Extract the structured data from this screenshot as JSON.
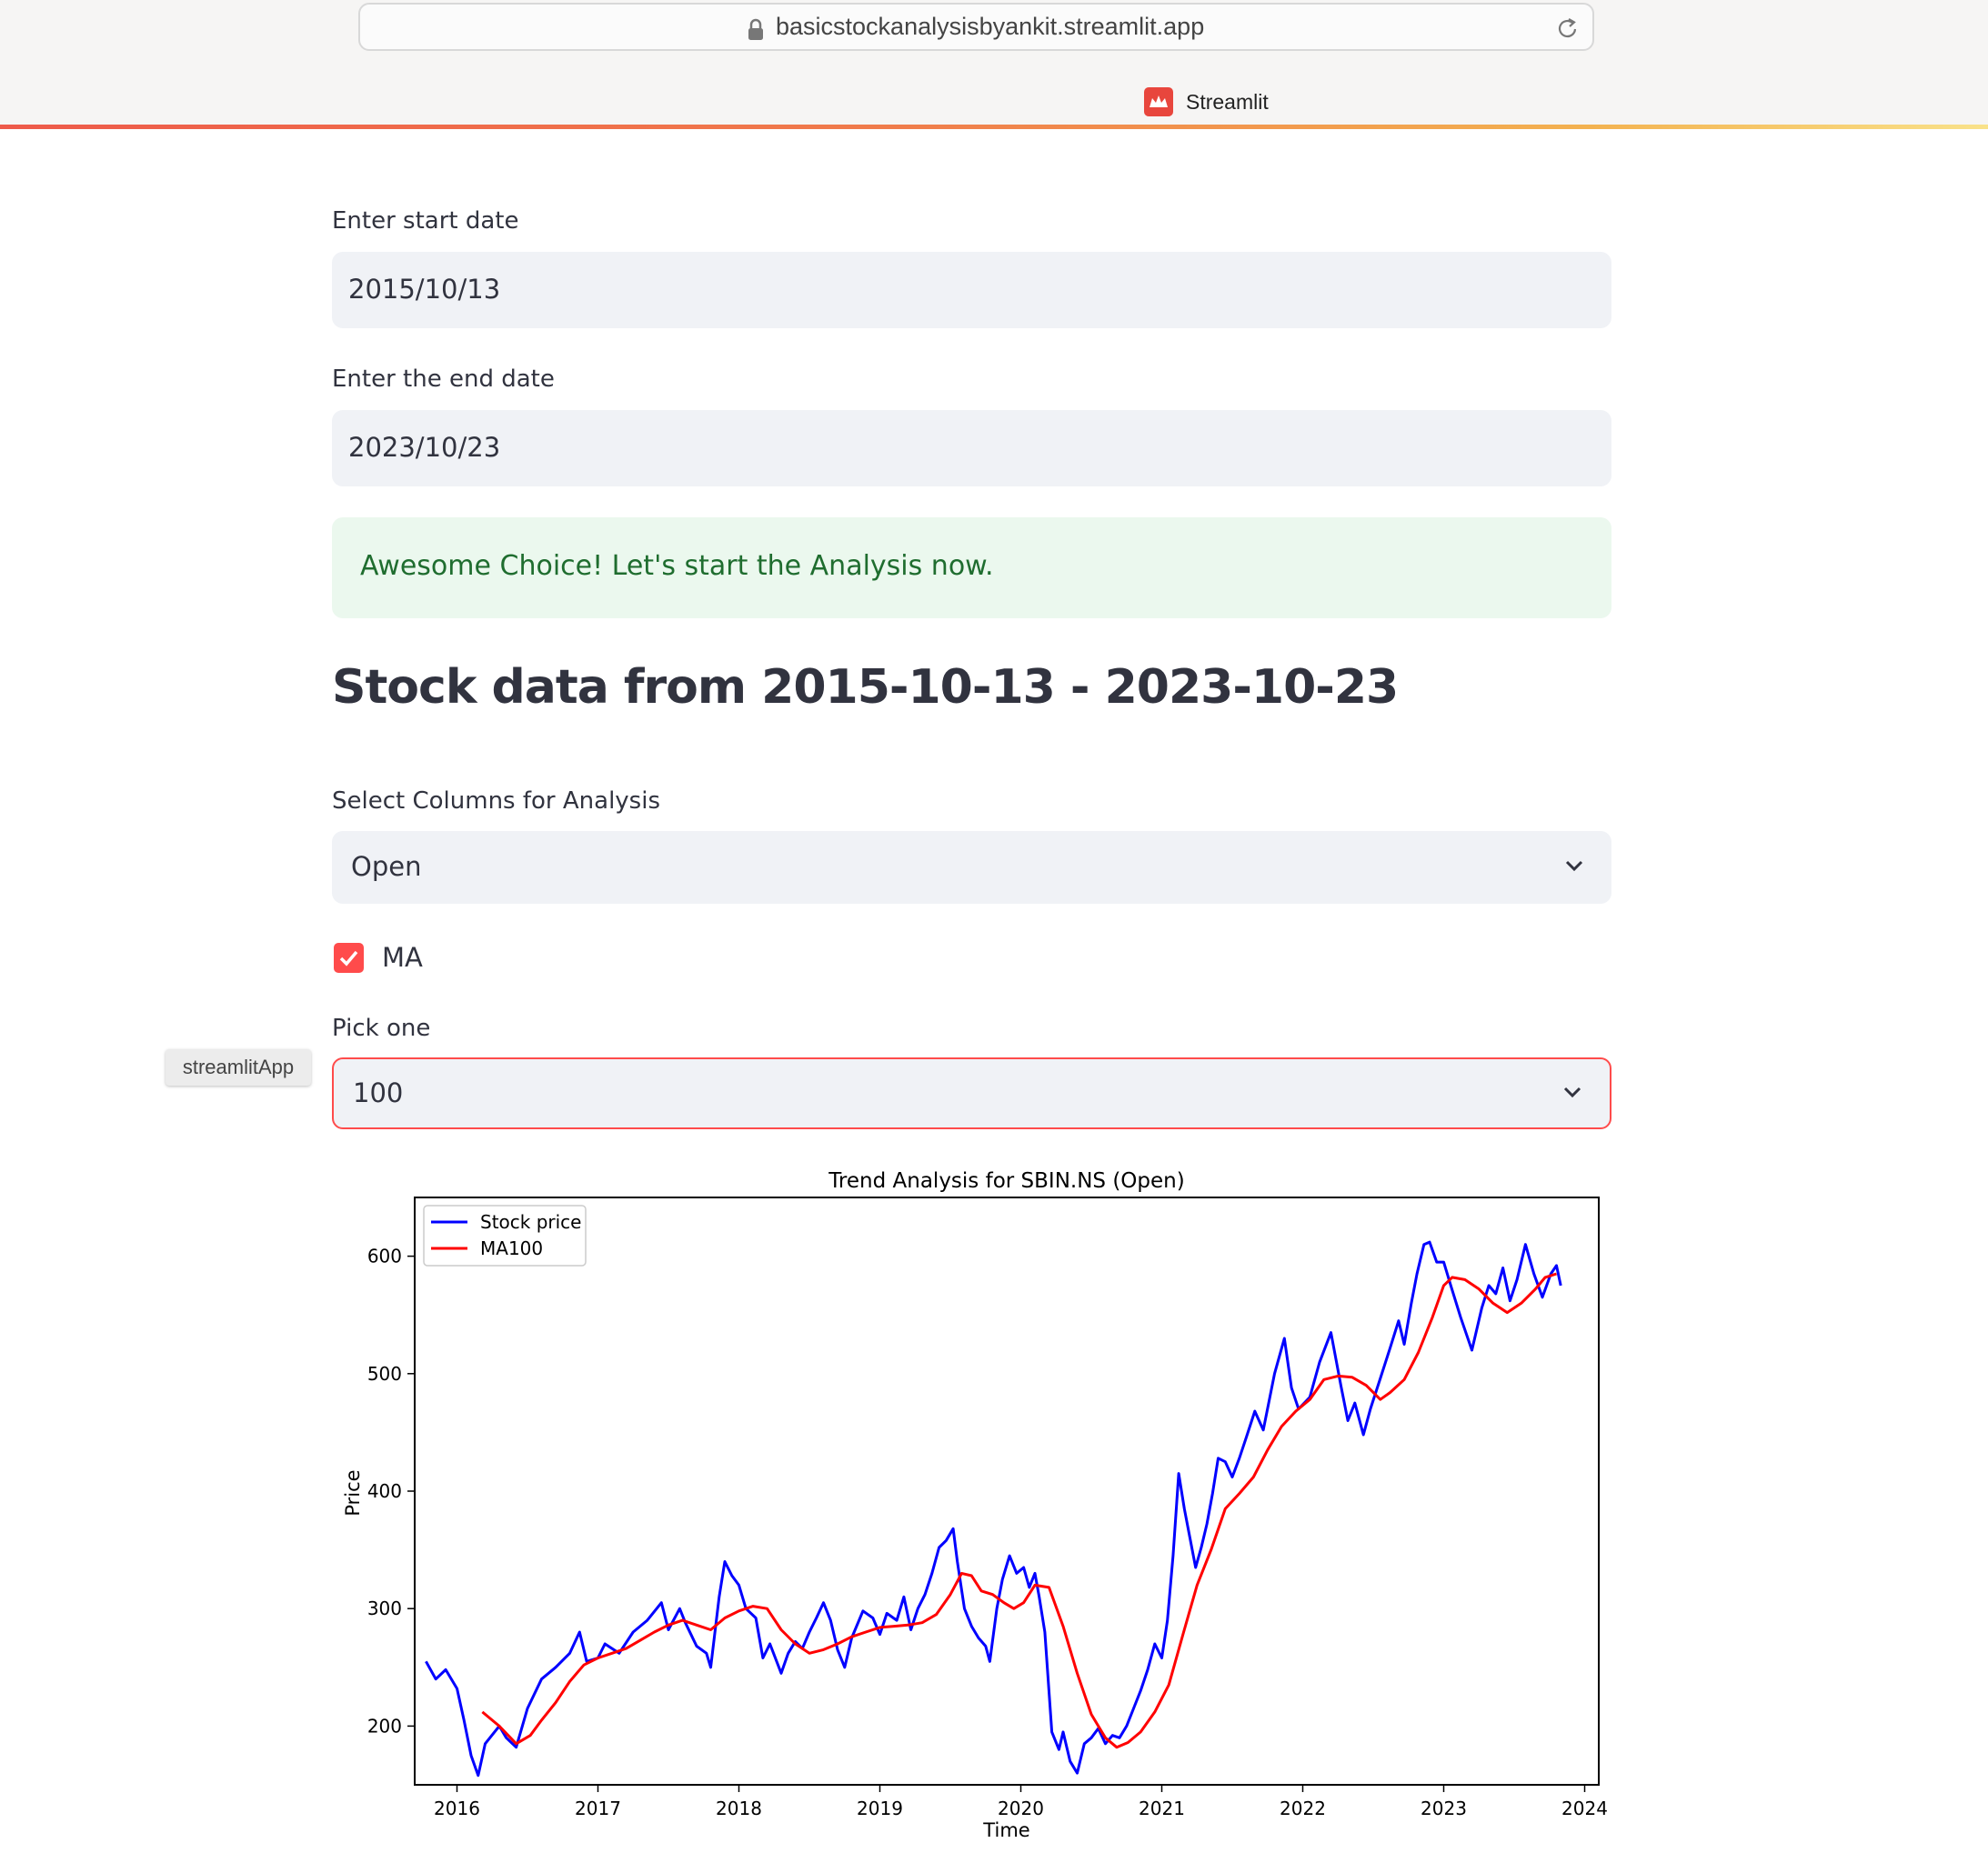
{
  "browser": {
    "url": "basicstockanalysisbyankit.streamlit.app",
    "tab_title": "Streamlit"
  },
  "form": {
    "start_label": "Enter start date",
    "start_value": "2015/10/13",
    "end_label": "Enter the end date",
    "end_value": "2023/10/23"
  },
  "success_message": "Awesome Choice! Let's start the Analysis now.",
  "heading": "Stock data from 2015-10-13 - 2023-10-23",
  "columns_select": {
    "label": "Select Columns for Analysis",
    "value": "Open"
  },
  "ma_checkbox": {
    "label": "MA",
    "checked": true
  },
  "pick_select": {
    "label": "Pick one",
    "value": "100"
  },
  "tooltip": "streamlitApp",
  "colors": {
    "primary": "#ff4b4b",
    "success_bg": "#ebf8ee",
    "success_text": "#1f6d2f",
    "input_bg": "#f0f2f6"
  },
  "chart_data": {
    "type": "line",
    "title": "Trend Analysis for SBIN.NS (Open)",
    "xlabel": "Time",
    "ylabel": "Price",
    "xlim": [
      2015.7,
      2024.1
    ],
    "ylim": [
      150,
      650
    ],
    "x_ticks": [
      "2016",
      "2017",
      "2018",
      "2019",
      "2020",
      "2021",
      "2022",
      "2023",
      "2024"
    ],
    "y_ticks": [
      200,
      300,
      400,
      500,
      600
    ],
    "legend_position": "top-left",
    "grid": false,
    "series": [
      {
        "name": "Stock price",
        "color": "#0000ff",
        "points": [
          [
            2015.78,
            255
          ],
          [
            2015.85,
            240
          ],
          [
            2015.92,
            248
          ],
          [
            2016.0,
            232
          ],
          [
            2016.05,
            205
          ],
          [
            2016.1,
            175
          ],
          [
            2016.15,
            158
          ],
          [
            2016.2,
            185
          ],
          [
            2016.3,
            200
          ],
          [
            2016.35,
            190
          ],
          [
            2016.42,
            182
          ],
          [
            2016.5,
            215
          ],
          [
            2016.6,
            240
          ],
          [
            2016.7,
            250
          ],
          [
            2016.8,
            262
          ],
          [
            2016.87,
            280
          ],
          [
            2016.92,
            255
          ],
          [
            2017.0,
            258
          ],
          [
            2017.05,
            270
          ],
          [
            2017.15,
            262
          ],
          [
            2017.25,
            280
          ],
          [
            2017.35,
            290
          ],
          [
            2017.45,
            305
          ],
          [
            2017.5,
            282
          ],
          [
            2017.58,
            300
          ],
          [
            2017.62,
            288
          ],
          [
            2017.7,
            268
          ],
          [
            2017.77,
            262
          ],
          [
            2017.8,
            250
          ],
          [
            2017.86,
            310
          ],
          [
            2017.9,
            340
          ],
          [
            2017.95,
            328
          ],
          [
            2018.0,
            320
          ],
          [
            2018.05,
            300
          ],
          [
            2018.12,
            292
          ],
          [
            2018.17,
            258
          ],
          [
            2018.22,
            270
          ],
          [
            2018.3,
            245
          ],
          [
            2018.35,
            262
          ],
          [
            2018.4,
            272
          ],
          [
            2018.45,
            266
          ],
          [
            2018.5,
            280
          ],
          [
            2018.55,
            292
          ],
          [
            2018.6,
            305
          ],
          [
            2018.65,
            290
          ],
          [
            2018.7,
            265
          ],
          [
            2018.75,
            250
          ],
          [
            2018.8,
            275
          ],
          [
            2018.88,
            298
          ],
          [
            2018.95,
            292
          ],
          [
            2019.0,
            278
          ],
          [
            2019.05,
            296
          ],
          [
            2019.12,
            290
          ],
          [
            2019.17,
            310
          ],
          [
            2019.22,
            282
          ],
          [
            2019.27,
            300
          ],
          [
            2019.32,
            312
          ],
          [
            2019.37,
            330
          ],
          [
            2019.42,
            352
          ],
          [
            2019.47,
            358
          ],
          [
            2019.52,
            368
          ],
          [
            2019.55,
            340
          ],
          [
            2019.6,
            300
          ],
          [
            2019.65,
            285
          ],
          [
            2019.7,
            275
          ],
          [
            2019.75,
            268
          ],
          [
            2019.78,
            255
          ],
          [
            2019.83,
            300
          ],
          [
            2019.87,
            325
          ],
          [
            2019.92,
            345
          ],
          [
            2019.97,
            330
          ],
          [
            2020.02,
            335
          ],
          [
            2020.06,
            318
          ],
          [
            2020.1,
            330
          ],
          [
            2020.13,
            310
          ],
          [
            2020.17,
            280
          ],
          [
            2020.22,
            195
          ],
          [
            2020.27,
            180
          ],
          [
            2020.3,
            195
          ],
          [
            2020.35,
            170
          ],
          [
            2020.4,
            160
          ],
          [
            2020.45,
            185
          ],
          [
            2020.5,
            190
          ],
          [
            2020.55,
            198
          ],
          [
            2020.6,
            185
          ],
          [
            2020.65,
            192
          ],
          [
            2020.7,
            190
          ],
          [
            2020.75,
            200
          ],
          [
            2020.8,
            215
          ],
          [
            2020.85,
            230
          ],
          [
            2020.9,
            248
          ],
          [
            2020.95,
            270
          ],
          [
            2021.0,
            258
          ],
          [
            2021.04,
            290
          ],
          [
            2021.08,
            345
          ],
          [
            2021.12,
            415
          ],
          [
            2021.16,
            385
          ],
          [
            2021.2,
            360
          ],
          [
            2021.24,
            335
          ],
          [
            2021.28,
            352
          ],
          [
            2021.32,
            372
          ],
          [
            2021.36,
            398
          ],
          [
            2021.4,
            428
          ],
          [
            2021.45,
            425
          ],
          [
            2021.5,
            412
          ],
          [
            2021.55,
            428
          ],
          [
            2021.6,
            446
          ],
          [
            2021.66,
            468
          ],
          [
            2021.72,
            452
          ],
          [
            2021.8,
            500
          ],
          [
            2021.87,
            530
          ],
          [
            2021.92,
            488
          ],
          [
            2021.97,
            470
          ],
          [
            2022.05,
            480
          ],
          [
            2022.12,
            510
          ],
          [
            2022.2,
            535
          ],
          [
            2022.27,
            490
          ],
          [
            2022.32,
            460
          ],
          [
            2022.37,
            475
          ],
          [
            2022.43,
            448
          ],
          [
            2022.48,
            470
          ],
          [
            2022.55,
            496
          ],
          [
            2022.62,
            522
          ],
          [
            2022.68,
            545
          ],
          [
            2022.72,
            525
          ],
          [
            2022.77,
            560
          ],
          [
            2022.81,
            585
          ],
          [
            2022.86,
            610
          ],
          [
            2022.9,
            612
          ],
          [
            2022.95,
            595
          ],
          [
            2023.0,
            595
          ],
          [
            2023.05,
            575
          ],
          [
            2023.12,
            548
          ],
          [
            2023.2,
            520
          ],
          [
            2023.27,
            556
          ],
          [
            2023.32,
            575
          ],
          [
            2023.37,
            568
          ],
          [
            2023.42,
            590
          ],
          [
            2023.47,
            562
          ],
          [
            2023.52,
            580
          ],
          [
            2023.58,
            610
          ],
          [
            2023.64,
            585
          ],
          [
            2023.7,
            565
          ],
          [
            2023.76,
            585
          ],
          [
            2023.8,
            592
          ],
          [
            2023.83,
            575
          ]
        ]
      },
      {
        "name": "MA100",
        "color": "#ff0000",
        "points": [
          [
            2016.18,
            212
          ],
          [
            2016.3,
            200
          ],
          [
            2016.42,
            185
          ],
          [
            2016.52,
            192
          ],
          [
            2016.6,
            205
          ],
          [
            2016.7,
            220
          ],
          [
            2016.8,
            238
          ],
          [
            2016.9,
            252
          ],
          [
            2017.0,
            258
          ],
          [
            2017.1,
            262
          ],
          [
            2017.2,
            266
          ],
          [
            2017.3,
            273
          ],
          [
            2017.4,
            280
          ],
          [
            2017.5,
            286
          ],
          [
            2017.6,
            290
          ],
          [
            2017.7,
            286
          ],
          [
            2017.8,
            282
          ],
          [
            2017.9,
            292
          ],
          [
            2018.0,
            298
          ],
          [
            2018.1,
            302
          ],
          [
            2018.2,
            300
          ],
          [
            2018.3,
            282
          ],
          [
            2018.4,
            270
          ],
          [
            2018.5,
            262
          ],
          [
            2018.6,
            265
          ],
          [
            2018.7,
            270
          ],
          [
            2018.8,
            276
          ],
          [
            2018.9,
            280
          ],
          [
            2019.0,
            284
          ],
          [
            2019.1,
            285
          ],
          [
            2019.2,
            286
          ],
          [
            2019.3,
            288
          ],
          [
            2019.4,
            295
          ],
          [
            2019.5,
            312
          ],
          [
            2019.58,
            330
          ],
          [
            2019.65,
            328
          ],
          [
            2019.72,
            315
          ],
          [
            2019.8,
            312
          ],
          [
            2019.88,
            305
          ],
          [
            2019.95,
            300
          ],
          [
            2020.02,
            305
          ],
          [
            2020.1,
            320
          ],
          [
            2020.2,
            318
          ],
          [
            2020.3,
            285
          ],
          [
            2020.4,
            245
          ],
          [
            2020.5,
            210
          ],
          [
            2020.6,
            190
          ],
          [
            2020.68,
            182
          ],
          [
            2020.76,
            186
          ],
          [
            2020.85,
            195
          ],
          [
            2020.95,
            212
          ],
          [
            2021.05,
            235
          ],
          [
            2021.15,
            278
          ],
          [
            2021.25,
            320
          ],
          [
            2021.35,
            350
          ],
          [
            2021.45,
            385
          ],
          [
            2021.55,
            398
          ],
          [
            2021.65,
            412
          ],
          [
            2021.75,
            435
          ],
          [
            2021.85,
            455
          ],
          [
            2021.95,
            468
          ],
          [
            2022.05,
            478
          ],
          [
            2022.15,
            495
          ],
          [
            2022.25,
            498
          ],
          [
            2022.35,
            497
          ],
          [
            2022.45,
            490
          ],
          [
            2022.55,
            478
          ],
          [
            2022.62,
            484
          ],
          [
            2022.72,
            495
          ],
          [
            2022.82,
            518
          ],
          [
            2022.92,
            548
          ],
          [
            2023.0,
            575
          ],
          [
            2023.06,
            582
          ],
          [
            2023.15,
            580
          ],
          [
            2023.25,
            572
          ],
          [
            2023.35,
            560
          ],
          [
            2023.45,
            552
          ],
          [
            2023.55,
            560
          ],
          [
            2023.65,
            572
          ],
          [
            2023.72,
            582
          ],
          [
            2023.8,
            585
          ]
        ]
      }
    ]
  }
}
